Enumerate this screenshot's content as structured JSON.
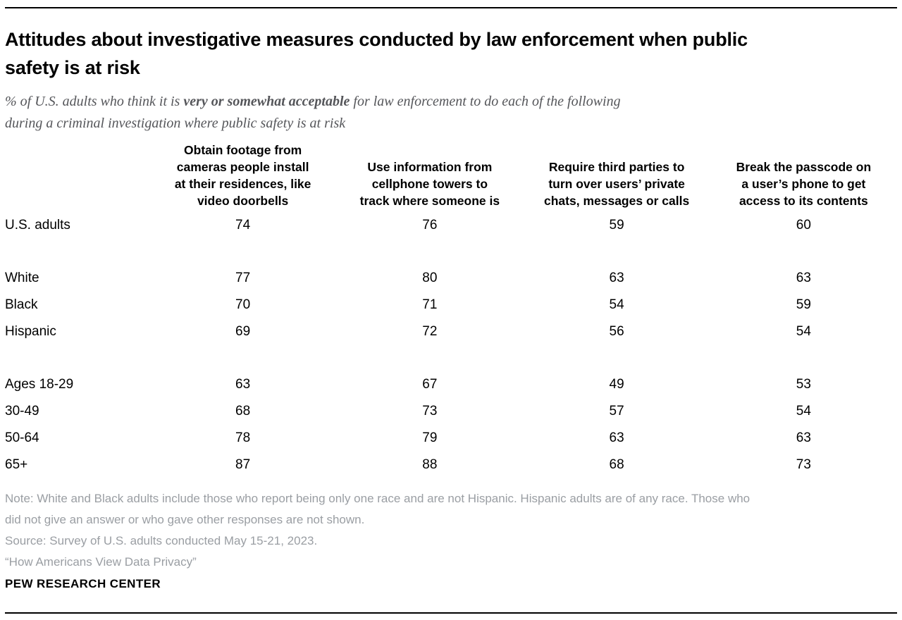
{
  "chart_data": {
    "type": "table",
    "title": "Attitudes about investigative measures conducted by law enforcement when public safety is at risk",
    "subtitle": "% of U.S. adults who think it is very or somewhat acceptable for law enforcement to do each of the following during a criminal investigation where public safety is at risk",
    "unit": "% saying very or somewhat acceptable",
    "columns": [
      "Obtain footage from cameras people install at their residences, like video doorbells",
      "Use information from cellphone towers to track where someone is",
      "Require third parties to turn over users’ private chats, messages or calls",
      "Break the passcode on a user’s phone to get access to its contents"
    ],
    "groups": [
      {
        "name": "overall",
        "rows": [
          {
            "label": "U.S. adults",
            "values": [
              74,
              76,
              59,
              60
            ]
          }
        ]
      },
      {
        "name": "race-ethnicity",
        "rows": [
          {
            "label": "White",
            "values": [
              77,
              80,
              63,
              63
            ]
          },
          {
            "label": "Black",
            "values": [
              70,
              71,
              54,
              59
            ]
          },
          {
            "label": "Hispanic",
            "values": [
              69,
              72,
              56,
              54
            ]
          }
        ]
      },
      {
        "name": "age",
        "rows": [
          {
            "label": "Ages 18-29",
            "values": [
              63,
              67,
              49,
              53
            ]
          },
          {
            "label": "30-49",
            "values": [
              68,
              73,
              57,
              54
            ]
          },
          {
            "label": "50-64",
            "values": [
              78,
              79,
              63,
              63
            ]
          },
          {
            "label": "65+",
            "values": [
              87,
              88,
              68,
              73
            ]
          }
        ]
      }
    ]
  },
  "display": {
    "title_lines": [
      "Attitudes about investigative measures conducted by law enforcement when public",
      "safety is at risk"
    ],
    "subtitle": {
      "prefix": "% of U.S. adults who think it is ",
      "bold": "very or somewhat acceptable",
      "line1_rest": " for law enforcement to do each of the following",
      "line2": "during a criminal investigation where public safety is at risk"
    },
    "column_lines": [
      [
        "Obtain footage from",
        "cameras people install",
        "at their residences, like",
        "video doorbells"
      ],
      [
        "Use information from",
        "cellphone towers to",
        "track where someone is"
      ],
      [
        "Require third parties to",
        "turn over users’ private",
        "chats, messages or calls"
      ],
      [
        "Break the passcode on",
        "a user’s phone to get",
        "access to its contents"
      ]
    ]
  },
  "footer": {
    "note_lines": [
      "Note: White and Black adults include those who report being only one race and are not Hispanic. Hispanic adults are of any race. Those who",
      "did not give an answer or who gave other responses are not shown."
    ],
    "source": "Source: Survey of U.S. adults conducted May 15-21, 2023.",
    "report_title": "“How Americans View Data Privacy”",
    "branding": "PEW RESEARCH CENTER"
  },
  "colors": {
    "title": "#000000",
    "subtitle": "#55565a",
    "note": "#9a9ea3",
    "rule": "#000000",
    "background": "#ffffff"
  }
}
